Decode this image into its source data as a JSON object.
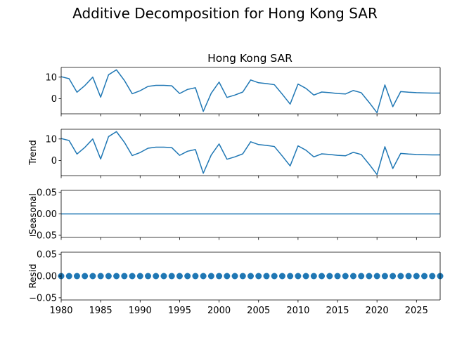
{
  "chart_data": {
    "type": "line",
    "title": "Additive Decomposition for Hong Kong SAR",
    "xlim": [
      1980,
      2028
    ],
    "x_ticks": [
      "1980",
      "1985",
      "1990",
      "1995",
      "2000",
      "2005",
      "2010",
      "2015",
      "2020",
      "2025"
    ],
    "x": [
      1980,
      1981,
      1982,
      1983,
      1984,
      1985,
      1986,
      1987,
      1988,
      1989,
      1990,
      1991,
      1992,
      1993,
      1994,
      1995,
      1996,
      1997,
      1998,
      1999,
      2000,
      2001,
      2002,
      2003,
      2004,
      2005,
      2006,
      2007,
      2008,
      2009,
      2010,
      2011,
      2012,
      2013,
      2014,
      2015,
      2016,
      2017,
      2018,
      2019,
      2020,
      2021,
      2022,
      2023,
      2024,
      2025,
      2026,
      2027,
      2028
    ],
    "panels": [
      {
        "name": "observed",
        "subplot_title": "Hong Kong SAR",
        "ylabel": "",
        "ylim": [
          -7,
          14.5
        ],
        "y_ticks": [
          "10",
          "0"
        ],
        "y_tick_values": [
          10,
          0
        ],
        "style": "line",
        "values": [
          10.2,
          9.3,
          3.0,
          6.1,
          10.0,
          0.7,
          11.1,
          13.4,
          8.5,
          2.3,
          3.7,
          5.7,
          6.2,
          6.2,
          6.0,
          2.4,
          4.3,
          5.1,
          -5.9,
          2.5,
          7.7,
          0.6,
          1.7,
          3.1,
          8.7,
          7.4,
          7.0,
          6.5,
          2.1,
          -2.5,
          6.8,
          4.8,
          1.7,
          3.1,
          2.8,
          2.4,
          2.2,
          3.8,
          2.8,
          -1.7,
          -6.5,
          6.4,
          -3.7,
          3.3,
          3.0,
          2.8,
          2.7,
          2.6,
          2.6
        ]
      },
      {
        "name": "trend",
        "subplot_title": "",
        "ylabel": "Trend",
        "ylim": [
          -7,
          14.5
        ],
        "y_ticks": [
          "10",
          "0"
        ],
        "y_tick_values": [
          10,
          0
        ],
        "style": "line",
        "values": [
          10.2,
          9.3,
          3.0,
          6.1,
          10.0,
          0.7,
          11.1,
          13.4,
          8.5,
          2.3,
          3.7,
          5.7,
          6.2,
          6.2,
          6.0,
          2.4,
          4.3,
          5.1,
          -5.9,
          2.5,
          7.7,
          0.6,
          1.7,
          3.1,
          8.7,
          7.4,
          7.0,
          6.5,
          2.1,
          -2.5,
          6.8,
          4.8,
          1.7,
          3.1,
          2.8,
          2.4,
          2.2,
          3.8,
          2.8,
          -1.7,
          -6.5,
          6.4,
          -3.7,
          3.3,
          3.0,
          2.8,
          2.7,
          2.6,
          2.6
        ]
      },
      {
        "name": "seasonal",
        "subplot_title": "",
        "ylabel": "Seasonal",
        "ylim": [
          -0.055,
          0.055
        ],
        "y_ticks": [
          "0.05",
          "0.00",
          "−0.05"
        ],
        "y_tick_values": [
          0.05,
          0.0,
          -0.05
        ],
        "style": "line",
        "values": [
          0.0,
          0.0,
          0.0,
          0.0,
          0.0,
          0.0,
          0.0,
          0.0,
          0.0,
          0.0,
          0.0,
          0.0,
          0.0,
          0.0,
          0.0,
          0.0,
          0.0,
          0.0,
          0.0,
          0.0,
          0.0,
          0.0,
          0.0,
          0.0,
          0.0,
          0.0,
          0.0,
          0.0,
          0.0,
          0.0,
          0.0,
          0.0,
          0.0,
          0.0,
          0.0,
          0.0,
          0.0,
          0.0,
          0.0,
          0.0,
          0.0,
          0.0,
          0.0,
          0.0,
          0.0,
          0.0,
          0.0,
          0.0,
          0.0
        ]
      },
      {
        "name": "resid",
        "subplot_title": "",
        "ylabel": "Resid",
        "ylim": [
          -0.055,
          0.055
        ],
        "y_ticks": [
          "0.05",
          "0.00",
          "−0.05"
        ],
        "y_tick_values": [
          0.05,
          0.0,
          -0.05
        ],
        "style": "scatter",
        "values": [
          0.0,
          0.0,
          0.0,
          0.0,
          0.0,
          0.0,
          0.0,
          0.0,
          0.0,
          0.0,
          0.0,
          0.0,
          0.0,
          0.0,
          0.0,
          0.0,
          0.0,
          0.0,
          0.0,
          0.0,
          0.0,
          0.0,
          0.0,
          0.0,
          0.0,
          0.0,
          0.0,
          0.0,
          0.0,
          0.0,
          0.0,
          0.0,
          0.0,
          0.0,
          0.0,
          0.0,
          0.0,
          0.0,
          0.0,
          0.0,
          0.0,
          0.0,
          0.0,
          0.0,
          0.0,
          0.0,
          0.0,
          0.0,
          0.0
        ]
      }
    ],
    "series_color": "#1f77b4",
    "grid": false,
    "legend": "none"
  }
}
